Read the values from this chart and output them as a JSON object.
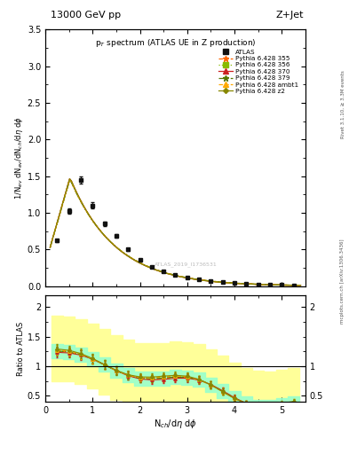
{
  "title_top": "13000 GeV pp",
  "title_right": "Z+Jet",
  "plot_title": "p$_T$ spectrum (ATLAS UE in Z production)",
  "xlabel": "N$_{ch}$/d$\\eta$ d$\\phi$",
  "ylabel_main": "1/N$_{ev}$ dN$_{ev}$/dN$_{ch}$/d$\\eta$ d$\\phi$",
  "ylabel_ratio": "Ratio to ATLAS",
  "right_label_top": "Rivet 3.1.10, ≥ 3.3M events",
  "right_label_bottom": "mcplots.cern.ch [arXiv:1306.3436]",
  "watermark": "ATLAS_2019_I1736531",
  "xlim": [
    0,
    5.5
  ],
  "ylim_main": [
    0,
    3.5
  ],
  "ylim_ratio": [
    0.4,
    2.2
  ],
  "atlas_color": "#111111",
  "colors": {
    "355": "#ff6600",
    "356": "#88bb00",
    "370": "#cc2222",
    "379": "#557700",
    "ambt1": "#ffaa00",
    "z2": "#888800"
  }
}
